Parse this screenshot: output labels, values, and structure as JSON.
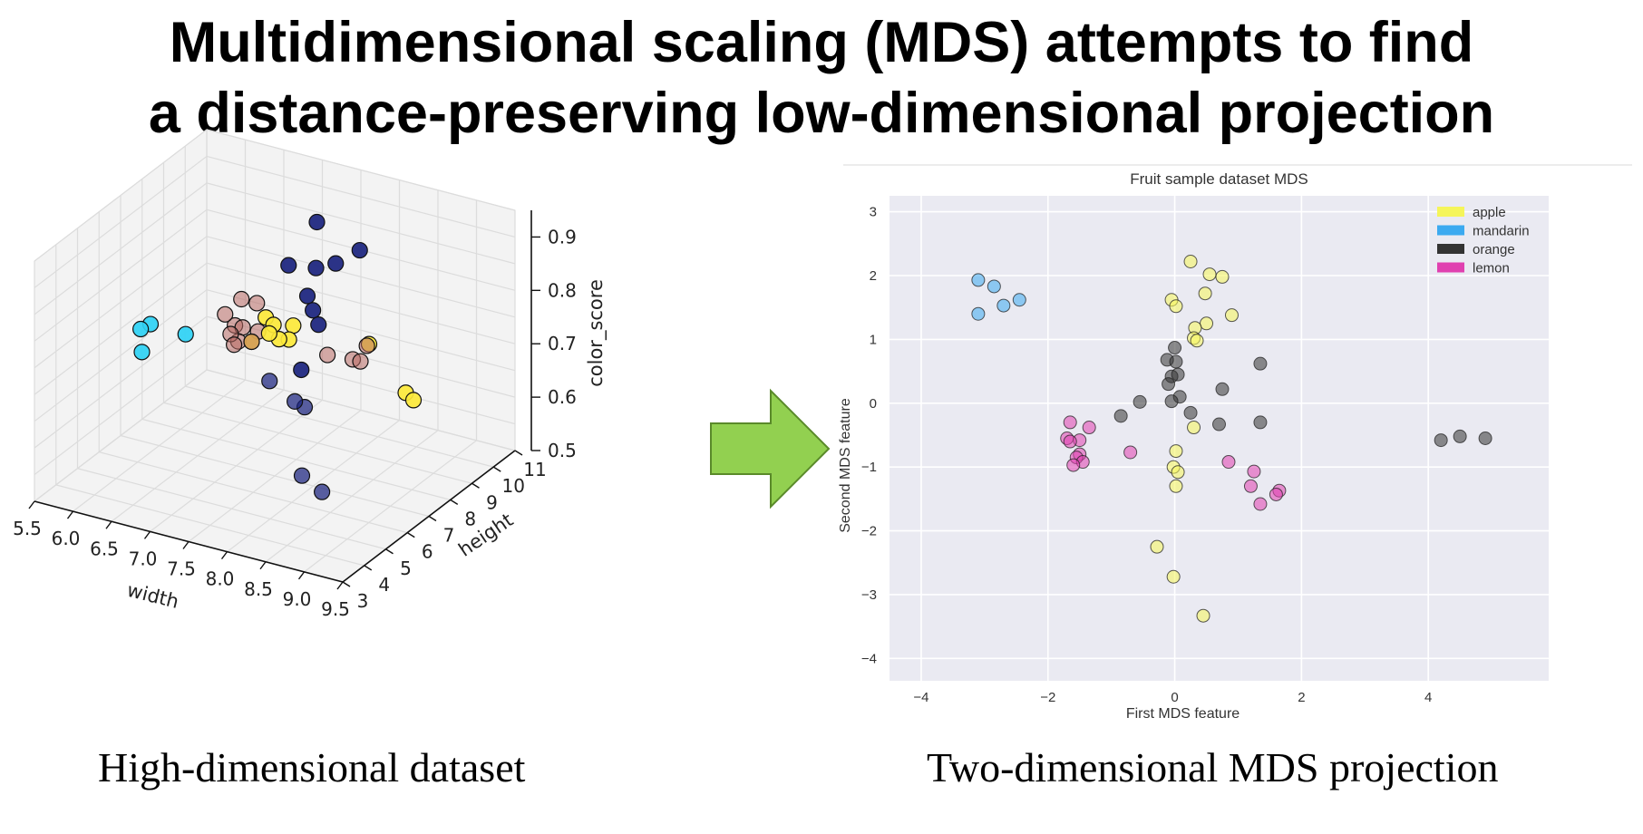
{
  "slide": {
    "title_line1": "Multidimensional scaling (MDS) attempts to find",
    "title_line2": "a distance-preserving low-dimensional projection",
    "caption_left": "High-dimensional dataset",
    "caption_right": "Two-dimensional MDS projection"
  },
  "colors": {
    "arrow_fill": "#92d050",
    "arrow_stroke": "#5a8a2a",
    "plot_bg": "#eaeaf2",
    "apple": "#f5f55a",
    "mandarin": "#3caaf0",
    "orange": "#333333",
    "lemon": "#e040b0",
    "cyan3d": "#2fd3f5",
    "navy3d": "#1a237e",
    "yellow3d": "#fde93a",
    "rose3d": "#b86a64"
  },
  "chart_data": [
    {
      "type": "scatter",
      "projection": "3d",
      "xlabel": "width",
      "ylabel": "height",
      "zlabel": "color_score",
      "xticks": [
        "5.5",
        "6.0",
        "6.5",
        "7.0",
        "7.5",
        "8.0",
        "8.5",
        "9.0",
        "9.5"
      ],
      "yticks": [
        "3",
        "4",
        "5",
        "6",
        "7",
        "8",
        "9",
        "10",
        "11"
      ],
      "zticks": [
        "0.5",
        "0.6",
        "0.7",
        "0.8",
        "0.9"
      ],
      "xlim": [
        5.5,
        9.5
      ],
      "ylim": [
        3,
        11
      ],
      "zlim": [
        0.5,
        0.95
      ],
      "grid": true,
      "series": [
        {
          "color": "cyan3d",
          "points": [
            [
              5.9,
              6.5,
              0.73
            ],
            [
              6.0,
              6.6,
              0.74
            ],
            [
              6.0,
              6.2,
              0.7
            ],
            [
              6.4,
              6.8,
              0.73
            ]
          ]
        },
        {
          "color": "navy3d",
          "points": [
            [
              7.6,
              8.6,
              0.93
            ],
            [
              7.4,
              8.0,
              0.86
            ],
            [
              7.7,
              8.2,
              0.86
            ],
            [
              7.9,
              8.4,
              0.87
            ],
            [
              8.1,
              8.8,
              0.89
            ],
            [
              7.7,
              7.8,
              0.82
            ],
            [
              7.8,
              7.7,
              0.8
            ],
            [
              7.9,
              7.6,
              0.78
            ],
            [
              7.9,
              6.8,
              0.72
            ],
            [
              7.6,
              6.4,
              0.7
            ],
            [
              7.9,
              6.5,
              0.67
            ],
            [
              8.0,
              6.6,
              0.66
            ],
            [
              8.3,
              5.4,
              0.58
            ],
            [
              8.7,
              4.9,
              0.58
            ]
          ]
        },
        {
          "color": "yellow3d",
          "points": [
            [
              7.3,
              7.3,
              0.78
            ],
            [
              7.4,
              7.3,
              0.77
            ],
            [
              7.6,
              7.5,
              0.77
            ],
            [
              7.4,
              7.1,
              0.76
            ],
            [
              7.5,
              7.2,
              0.75
            ],
            [
              7.6,
              7.3,
              0.75
            ],
            [
              7.2,
              7.0,
              0.74
            ],
            [
              8.5,
              7.8,
              0.76
            ],
            [
              9.2,
              7.0,
              0.72
            ],
            [
              9.3,
              7.0,
              0.71
            ]
          ]
        },
        {
          "color": "rose3d",
          "points": [
            [
              6.9,
              7.6,
              0.79
            ],
            [
              7.1,
              7.6,
              0.79
            ],
            [
              6.8,
              7.2,
              0.77
            ],
            [
              6.9,
              7.3,
              0.75
            ],
            [
              7.0,
              7.3,
              0.75
            ],
            [
              7.0,
              7.1,
              0.73
            ],
            [
              6.9,
              7.1,
              0.74
            ],
            [
              7.2,
              7.0,
              0.74
            ],
            [
              7.0,
              6.9,
              0.73
            ],
            [
              7.2,
              7.3,
              0.75
            ],
            [
              8.1,
              7.3,
              0.74
            ],
            [
              8.4,
              7.4,
              0.74
            ],
            [
              8.5,
              7.4,
              0.74
            ],
            [
              8.5,
              7.7,
              0.76
            ]
          ]
        }
      ]
    },
    {
      "type": "scatter",
      "title": "Fruit sample dataset MDS",
      "xlabel": "First MDS feature",
      "ylabel": "Second MDS feature",
      "xlim": [
        -4.5,
        5.9
      ],
      "ylim": [
        -4.35,
        3.25
      ],
      "xticks": [
        -4,
        -2,
        0,
        2,
        4
      ],
      "yticks": [
        3,
        2,
        1,
        0,
        -1,
        -2,
        -3,
        -4
      ],
      "grid": true,
      "legend_position": "top-right",
      "series": [
        {
          "name": "apple",
          "color": "apple",
          "points": [
            [
              0.25,
              2.22
            ],
            [
              0.75,
              1.98
            ],
            [
              0.55,
              2.02
            ],
            [
              0.48,
              1.72
            ],
            [
              -0.05,
              1.62
            ],
            [
              0.02,
              1.52
            ],
            [
              0.9,
              1.38
            ],
            [
              0.5,
              1.25
            ],
            [
              0.32,
              1.18
            ],
            [
              0.3,
              1.02
            ],
            [
              0.35,
              0.98
            ],
            [
              0.3,
              -0.38
            ],
            [
              0.02,
              -0.75
            ],
            [
              -0.02,
              -1.0
            ],
            [
              0.05,
              -1.08
            ],
            [
              0.02,
              -1.3
            ],
            [
              -0.28,
              -2.25
            ],
            [
              -0.02,
              -2.72
            ],
            [
              0.45,
              -3.33
            ]
          ]
        },
        {
          "name": "mandarin",
          "color": "mandarin",
          "points": [
            [
              -3.1,
              1.93
            ],
            [
              -2.85,
              1.83
            ],
            [
              -2.7,
              1.53
            ],
            [
              -2.45,
              1.62
            ],
            [
              -3.1,
              1.4
            ]
          ]
        },
        {
          "name": "orange",
          "color": "orange",
          "points": [
            [
              0.0,
              0.87
            ],
            [
              -0.12,
              0.68
            ],
            [
              0.02,
              0.65
            ],
            [
              -0.05,
              0.42
            ],
            [
              0.05,
              0.45
            ],
            [
              -0.1,
              0.3
            ],
            [
              0.08,
              0.1
            ],
            [
              -0.05,
              0.03
            ],
            [
              -0.55,
              0.02
            ],
            [
              -0.85,
              -0.2
            ],
            [
              0.25,
              -0.15
            ],
            [
              0.75,
              0.22
            ],
            [
              1.35,
              0.62
            ],
            [
              0.7,
              -0.33
            ],
            [
              1.35,
              -0.3
            ],
            [
              4.2,
              -0.58
            ],
            [
              4.5,
              -0.52
            ],
            [
              4.9,
              -0.55
            ]
          ]
        },
        {
          "name": "lemon",
          "color": "lemon",
          "points": [
            [
              -1.65,
              -0.3
            ],
            [
              -1.35,
              -0.38
            ],
            [
              -1.7,
              -0.55
            ],
            [
              -1.5,
              -0.58
            ],
            [
              -1.65,
              -0.6
            ],
            [
              -1.5,
              -0.8
            ],
            [
              -1.55,
              -0.85
            ],
            [
              -0.7,
              -0.77
            ],
            [
              -1.45,
              -0.92
            ],
            [
              -1.6,
              -0.97
            ],
            [
              0.85,
              -0.92
            ],
            [
              1.25,
              -1.07
            ],
            [
              1.2,
              -1.3
            ],
            [
              1.65,
              -1.37
            ],
            [
              1.6,
              -1.43
            ],
            [
              1.35,
              -1.58
            ]
          ]
        }
      ]
    }
  ]
}
